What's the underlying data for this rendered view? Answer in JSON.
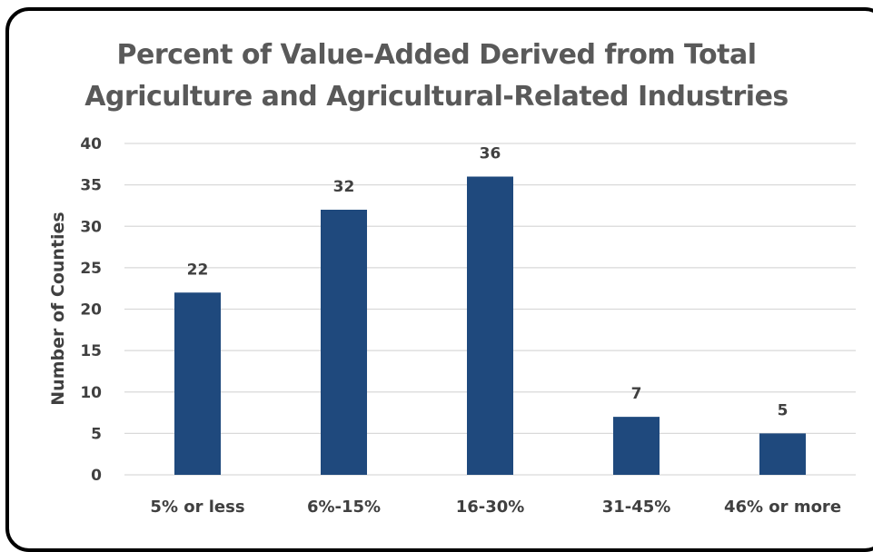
{
  "chart_data": {
    "type": "bar",
    "title_lines": [
      "Percent of Value-Added Derived from Total",
      "Agriculture and Agricultural-Related Industries"
    ],
    "xlabel": "",
    "ylabel": "Number of Counties",
    "categories": [
      "5% or less",
      "6%-15%",
      "16-30%",
      "31-45%",
      "46% or more"
    ],
    "values": [
      22,
      32,
      36,
      7,
      5
    ],
    "ylim": [
      0,
      40
    ],
    "yticks": [
      0,
      5,
      10,
      15,
      20,
      25,
      30,
      35,
      40
    ],
    "grid": true,
    "legend": "none",
    "bar_color": "#1F497D",
    "grid_color": "#D9D9D9"
  }
}
